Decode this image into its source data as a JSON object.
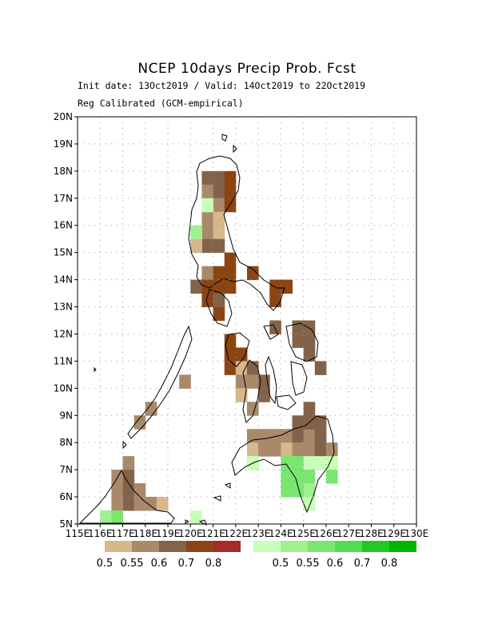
{
  "title": "NCEP 10days Precip Prob. Fcst",
  "subtitle_line1": "Init date: 13Oct2019 / Valid: 14Oct2019 to 22Oct2019",
  "subtitle_line2": "Reg Calibrated (GCM-empirical)",
  "axes": {
    "lon_min": 115,
    "lon_max": 130,
    "lat_min": 5,
    "lat_max": 20,
    "lat_ticks": [
      "5N",
      "6N",
      "7N",
      "8N",
      "9N",
      "10N",
      "11N",
      "12N",
      "13N",
      "14N",
      "15N",
      "16N",
      "17N",
      "18N",
      "19N",
      "20N"
    ],
    "lon_ticks": [
      "115E",
      "116E",
      "117E",
      "118E",
      "119E",
      "120E",
      "121E",
      "122E",
      "123E",
      "124E",
      "125E",
      "126E",
      "127E",
      "128E",
      "129E",
      "130E"
    ],
    "grid": true
  },
  "legend": {
    "dry_colors": [
      "#d6b88a",
      "#a88a6a",
      "#82634a",
      "#8b4513",
      "#a52a2a"
    ],
    "dry_labels": [
      "0.5",
      "0.55",
      "0.6",
      "0.7",
      "0.8"
    ],
    "wet_colors": [
      "#c8ffb8",
      "#a0f090",
      "#7ae670",
      "#52dc50",
      "#22c822",
      "#00b400"
    ],
    "wet_labels": [
      "0.5",
      "0.55",
      "0.6",
      "0.7",
      "0.8"
    ]
  },
  "chart_data": {
    "type": "heatmap",
    "title": "NCEP 10days Precip Prob. Fcst",
    "cell_size_deg": 0.5,
    "dry_cells": [
      [
        120.5,
        17.5,
        2
      ],
      [
        121.0,
        17.5,
        2
      ],
      [
        121.5,
        17.5,
        3
      ],
      [
        120.5,
        17.0,
        1
      ],
      [
        121.0,
        17.0,
        2
      ],
      [
        121.5,
        17.0,
        3
      ],
      [
        120.5,
        16.5,
        0
      ],
      [
        121.0,
        16.5,
        1
      ],
      [
        121.5,
        16.5,
        3
      ],
      [
        120.5,
        16.0,
        1
      ],
      [
        121.0,
        16.0,
        0
      ],
      [
        120.5,
        15.5,
        1
      ],
      [
        121.0,
        15.5,
        0
      ],
      [
        120.5,
        15.0,
        2
      ],
      [
        121.0,
        15.0,
        2
      ],
      [
        120.0,
        15.0,
        0
      ],
      [
        121.5,
        14.5,
        3
      ],
      [
        120.5,
        14.0,
        1
      ],
      [
        121.0,
        14.0,
        3
      ],
      [
        121.5,
        14.0,
        3
      ],
      [
        122.5,
        14.0,
        3
      ],
      [
        120.0,
        13.5,
        2
      ],
      [
        120.5,
        13.5,
        3
      ],
      [
        121.0,
        13.5,
        3
      ],
      [
        121.5,
        13.5,
        3
      ],
      [
        123.5,
        13.5,
        3
      ],
      [
        124.0,
        13.5,
        3
      ],
      [
        120.5,
        13.0,
        3
      ],
      [
        121.0,
        13.0,
        2
      ],
      [
        123.5,
        13.0,
        3
      ],
      [
        121.0,
        12.5,
        3
      ],
      [
        123.5,
        12.0,
        2
      ],
      [
        124.5,
        12.0,
        2
      ],
      [
        125.0,
        12.0,
        2
      ],
      [
        124.5,
        11.5,
        2
      ],
      [
        125.0,
        11.5,
        2
      ],
      [
        121.5,
        11.5,
        3
      ],
      [
        121.5,
        11.0,
        3
      ],
      [
        122.0,
        11.0,
        3
      ],
      [
        121.5,
        10.5,
        3
      ],
      [
        125.0,
        11.0,
        2
      ],
      [
        122.0,
        10.5,
        0
      ],
      [
        122.5,
        10.5,
        2
      ],
      [
        125.5,
        10.5,
        2
      ],
      [
        122.0,
        10.0,
        1
      ],
      [
        122.5,
        10.0,
        1
      ],
      [
        123.0,
        10.0,
        2
      ],
      [
        119.5,
        10.0,
        1
      ],
      [
        122.0,
        9.5,
        0
      ],
      [
        123.0,
        9.5,
        2
      ],
      [
        122.5,
        9.0,
        1
      ],
      [
        118.0,
        9.0,
        1
      ],
      [
        117.5,
        8.5,
        1
      ],
      [
        125.0,
        9.0,
        2
      ],
      [
        122.5,
        8.0,
        1
      ],
      [
        123.0,
        8.0,
        1
      ],
      [
        123.5,
        8.0,
        1
      ],
      [
        124.0,
        8.0,
        1
      ],
      [
        124.5,
        8.0,
        2
      ],
      [
        125.0,
        8.0,
        1
      ],
      [
        125.5,
        8.0,
        2
      ],
      [
        124.5,
        8.5,
        2
      ],
      [
        125.0,
        8.5,
        2
      ],
      [
        125.5,
        8.5,
        2
      ],
      [
        122.5,
        7.5,
        0
      ],
      [
        123.0,
        7.5,
        1
      ],
      [
        123.5,
        7.5,
        1
      ],
      [
        124.0,
        7.5,
        0
      ],
      [
        124.5,
        7.5,
        1
      ],
      [
        125.0,
        7.5,
        1
      ],
      [
        125.5,
        7.5,
        2
      ],
      [
        126.0,
        7.5,
        1
      ],
      [
        117.0,
        7.0,
        1
      ],
      [
        117.0,
        6.5,
        2
      ],
      [
        116.5,
        6.5,
        1
      ],
      [
        116.5,
        6.0,
        1
      ],
      [
        117.0,
        6.0,
        2
      ],
      [
        117.5,
        6.0,
        1
      ],
      [
        117.0,
        5.5,
        2
      ],
      [
        117.5,
        5.5,
        1
      ],
      [
        118.0,
        5.5,
        1
      ],
      [
        118.5,
        5.5,
        0
      ],
      [
        116.5,
        5.5,
        1
      ]
    ],
    "wet_cells": [
      [
        120.5,
        16.5,
        0
      ],
      [
        120.0,
        15.5,
        1
      ],
      [
        122.5,
        7.0,
        0
      ],
      [
        124.0,
        7.0,
        2
      ],
      [
        124.5,
        7.0,
        2
      ],
      [
        125.0,
        7.0,
        0
      ],
      [
        125.5,
        7.0,
        0
      ],
      [
        126.0,
        7.0,
        0
      ],
      [
        124.0,
        6.5,
        2
      ],
      [
        124.5,
        6.5,
        2
      ],
      [
        125.0,
        6.5,
        2
      ],
      [
        126.0,
        6.5,
        2
      ],
      [
        124.0,
        6.0,
        2
      ],
      [
        124.5,
        6.0,
        2
      ],
      [
        125.0,
        6.0,
        1
      ],
      [
        125.0,
        5.5,
        0
      ],
      [
        116.0,
        5.0,
        1
      ],
      [
        116.5,
        5.0,
        2
      ],
      [
        120.0,
        5.0,
        0
      ]
    ]
  }
}
